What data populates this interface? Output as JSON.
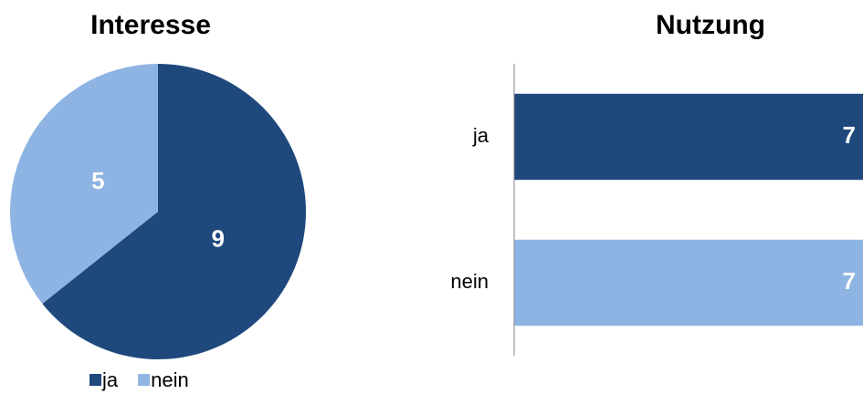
{
  "chart_data": [
    {
      "type": "pie",
      "title": "Interesse",
      "categories": [
        "ja",
        "nein"
      ],
      "values": [
        9,
        5
      ],
      "colors": [
        "#1f497d",
        "#8eb4e3"
      ],
      "legend": "bottom"
    },
    {
      "type": "hbar",
      "title": "Nutzung",
      "categories": [
        "ja",
        "nein"
      ],
      "values": [
        7,
        7
      ],
      "colors": [
        "#1f497d",
        "#8eb4e3"
      ],
      "xlim": [
        0,
        7
      ]
    }
  ]
}
